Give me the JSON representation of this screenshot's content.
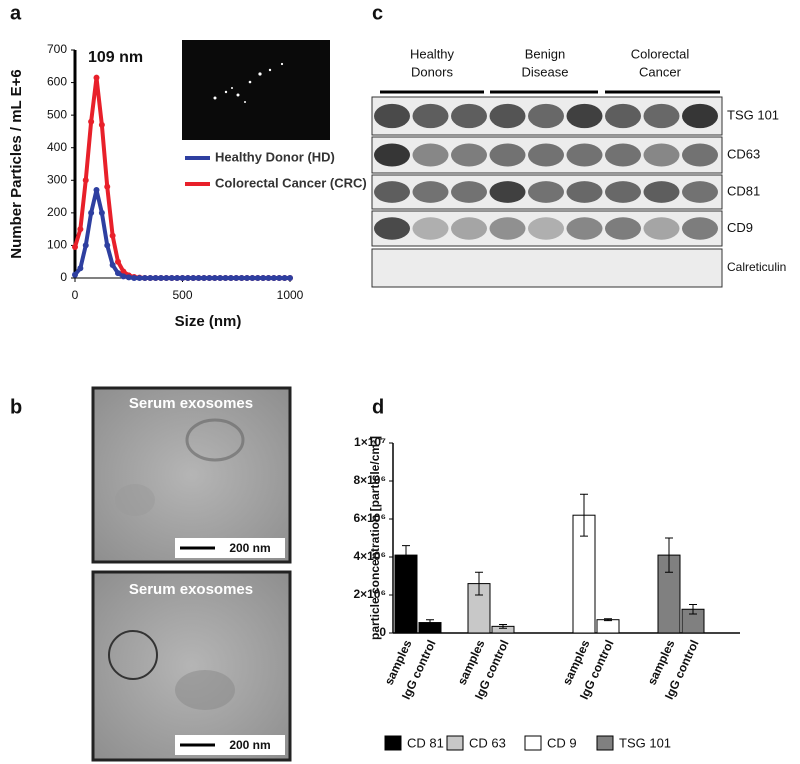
{
  "panel_labels": [
    "a",
    "b",
    "c",
    "d"
  ],
  "chart_data": [
    {
      "type": "line",
      "annotation": "109 nm",
      "xlabel": "Size (nm)",
      "ylabel": "Number Particles / mL E+6",
      "x": [
        0,
        25,
        50,
        75,
        100,
        125,
        150,
        175,
        200,
        225,
        250,
        275,
        300,
        325,
        350,
        375,
        400,
        425,
        450,
        475,
        500,
        525,
        550,
        575,
        600,
        625,
        650,
        675,
        700,
        725,
        750,
        775,
        800,
        825,
        850,
        875,
        900,
        925,
        950,
        975,
        1000
      ],
      "series": [
        {
          "name": "Colorectal Cancer (CRC)",
          "color": "#e8202a",
          "values": [
            95,
            150,
            300,
            480,
            615,
            470,
            280,
            130,
            50,
            20,
            8,
            3,
            1,
            0,
            0,
            0,
            0,
            0,
            0,
            0,
            0,
            0,
            0,
            0,
            0,
            0,
            0,
            0,
            0,
            0,
            0,
            0,
            0,
            0,
            0,
            0,
            0,
            0,
            0,
            0,
            0
          ]
        },
        {
          "name": "Healthy Donor (HD)",
          "color": "#2e3fa0",
          "values": [
            10,
            30,
            100,
            200,
            270,
            200,
            100,
            40,
            15,
            5,
            2,
            0,
            0,
            0,
            0,
            0,
            0,
            0,
            0,
            0,
            0,
            0,
            0,
            0,
            0,
            0,
            0,
            0,
            0,
            0,
            0,
            0,
            0,
            0,
            0,
            0,
            0,
            0,
            0,
            0,
            0
          ]
        }
      ],
      "xlim": [
        0,
        1000
      ],
      "xticks": [
        0,
        500,
        1000
      ],
      "ylim": [
        0,
        700
      ],
      "yticks": [
        0,
        100,
        200,
        300,
        400,
        500,
        600,
        700
      ]
    },
    {
      "type": "bar",
      "ylabel": "particle concentration [particle/cm³]",
      "categories": [
        "samples",
        "IgG control"
      ],
      "series": [
        {
          "name": "CD 81",
          "color": "#000000",
          "values": [
            4100000,
            550000
          ],
          "errors": [
            500000,
            150000
          ]
        },
        {
          "name": "CD 63",
          "color": "#c8c8c8",
          "values": [
            2600000,
            350000
          ],
          "errors": [
            600000,
            100000
          ]
        },
        {
          "name": "CD 9",
          "color": "#ffffff",
          "values": [
            6200000,
            700000
          ],
          "errors": [
            1100000,
            50000
          ]
        },
        {
          "name": "TSG 101",
          "color": "#808080",
          "values": [
            4100000,
            1250000
          ],
          "errors": [
            900000,
            250000
          ]
        }
      ],
      "ylim": [
        0,
        10000000
      ],
      "yticks": [
        0,
        {
          "value": 2000000,
          "label": "2×10⁶"
        },
        {
          "value": 4000000,
          "label": "4×10⁶"
        },
        {
          "value": 6000000,
          "label": "6×10⁶"
        },
        {
          "value": 8000000,
          "label": "8×10⁶"
        },
        {
          "value": 10000000,
          "label": "1×10⁷"
        }
      ]
    }
  ],
  "tem": [
    {
      "title": "Serum exosomes",
      "scale": "200 nm"
    },
    {
      "title": "Serum exosomes",
      "scale": "200 nm"
    }
  ],
  "blot": {
    "groups": [
      [
        "Healthy",
        "Donors"
      ],
      [
        "Benign",
        "Disease"
      ],
      [
        "Colorectal",
        "Cancer"
      ]
    ],
    "rows": [
      "TSG 101",
      "CD63",
      "CD81",
      "CD9",
      "Calreticulin"
    ]
  }
}
